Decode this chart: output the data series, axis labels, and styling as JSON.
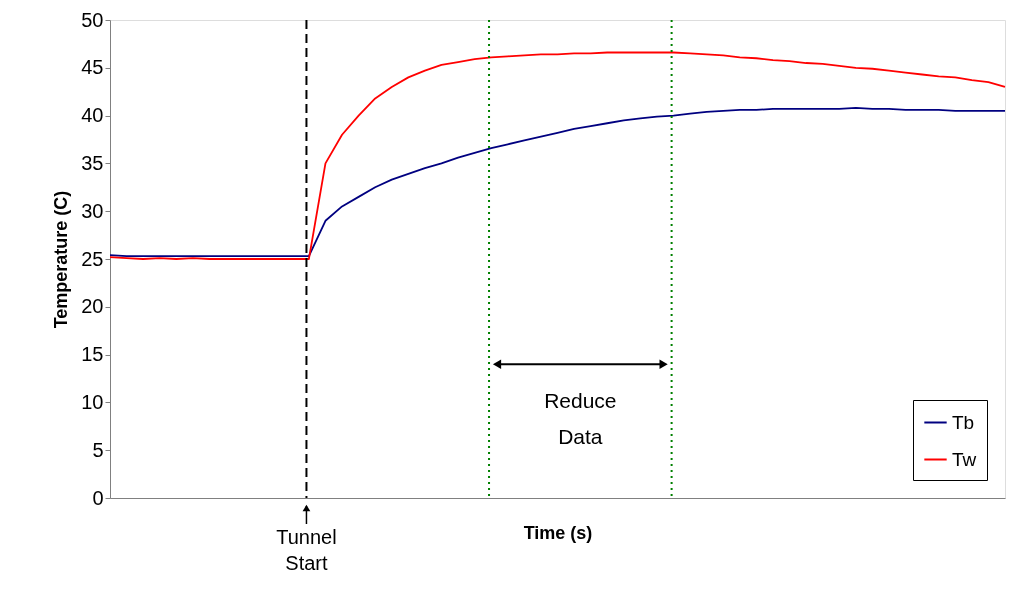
{
  "chart_data": {
    "type": "line",
    "xlabel": "Time (s)",
    "ylabel": "Temperature (C)",
    "categories": [
      null,
      null,
      null,
      null,
      null,
      null,
      null,
      null,
      null,
      null,
      null,
      null,
      null,
      null,
      null,
      null,
      null,
      null,
      null,
      null,
      null,
      null,
      null,
      null,
      null,
      null,
      null,
      null,
      null,
      null,
      null,
      null,
      null,
      null,
      null,
      null,
      null,
      null,
      null,
      null,
      null,
      null,
      null,
      null,
      null,
      null,
      null,
      null,
      null,
      null,
      null,
      null,
      null,
      null,
      null
    ],
    "series": [
      {
        "name": "Tb",
        "color": "#000080",
        "values": [
          25.4,
          25.3,
          25.3,
          25.3,
          25.3,
          25.3,
          25.3,
          25.3,
          25.3,
          25.3,
          25.3,
          25.3,
          25.3,
          29.0,
          30.5,
          31.5,
          32.5,
          33.3,
          33.9,
          34.5,
          35.0,
          35.6,
          36.1,
          36.6,
          37.0,
          37.4,
          37.8,
          38.2,
          38.6,
          38.9,
          39.2,
          39.5,
          39.7,
          39.9,
          40.0,
          40.2,
          40.4,
          40.5,
          40.6,
          40.6,
          40.7,
          40.7,
          40.7,
          40.7,
          40.7,
          40.8,
          40.7,
          40.7,
          40.6,
          40.6,
          40.6,
          40.5,
          40.5,
          40.5,
          40.5
        ]
      },
      {
        "name": "Tw",
        "color": "#ff0000",
        "values": [
          25.2,
          25.1,
          25.0,
          25.1,
          25.0,
          25.1,
          25.0,
          25.0,
          25.0,
          25.0,
          25.0,
          25.0,
          25.0,
          35.0,
          38.0,
          40.0,
          41.8,
          43.0,
          44.0,
          44.7,
          45.3,
          45.6,
          45.9,
          46.1,
          46.2,
          46.3,
          46.4,
          46.4,
          46.5,
          46.5,
          46.6,
          46.6,
          46.6,
          46.6,
          46.6,
          46.5,
          46.4,
          46.3,
          46.1,
          46.0,
          45.8,
          45.7,
          45.5,
          45.4,
          45.2,
          45.0,
          44.9,
          44.7,
          44.5,
          44.3,
          44.1,
          44.0,
          43.7,
          43.5,
          43.0
        ]
      }
    ],
    "ylim": [
      0,
      50
    ],
    "yticks": [
      0,
      5,
      10,
      15,
      20,
      25,
      30,
      35,
      40,
      45,
      50
    ],
    "annotations": [
      "Tunnel Start",
      "Reduce Data"
    ],
    "legend": "bottom right",
    "grid": false,
    "tick_labels": "y"
  }
}
